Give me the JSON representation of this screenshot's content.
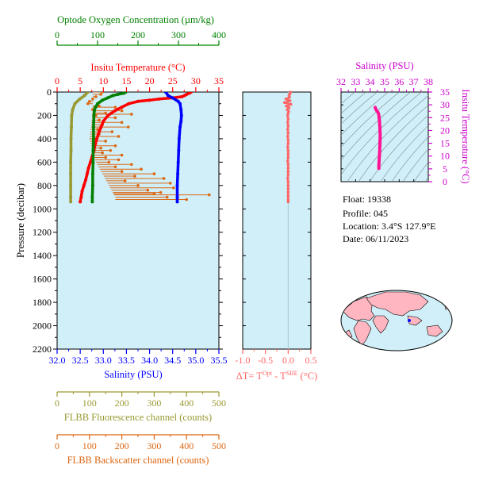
{
  "colors": {
    "oxygen": "#008000",
    "temperature": "#ff0000",
    "salinity": "#0000ff",
    "fluorescence": "#999933",
    "backscatter": "#dd6611",
    "delta_t": "#ff6666",
    "ts_axes": "#cc00cc",
    "ts_profile": "#ff1493",
    "panel_bg": "#d0eff8",
    "land": "#ffb6c1",
    "text": "#000000"
  },
  "info": {
    "float": "Float:  19338",
    "profile": "Profile:  045",
    "location": "Location:  3.4°S  127.9°E",
    "date": "Date:  06/11/2023"
  },
  "chart_data": [
    {
      "type": "line",
      "name": "profile-panel",
      "ylabel": "Pressure (decibar)",
      "ylim": [
        2200,
        0
      ],
      "yticks": [
        0,
        200,
        400,
        600,
        800,
        1000,
        1200,
        1400,
        1600,
        1800,
        2000,
        2200
      ],
      "axes": {
        "oxygen": {
          "label": "Optode Oxygen Concentration (µm/kg)",
          "range": [
            0,
            400
          ],
          "ticks": [
            0,
            100,
            200,
            300,
            400
          ]
        },
        "temperature": {
          "label": "Insitu Temperature (°C)",
          "range": [
            0,
            35
          ],
          "ticks": [
            0,
            5,
            10,
            15,
            20,
            25,
            30,
            35
          ]
        },
        "salinity": {
          "label": "Salinity (PSU)",
          "range": [
            32.0,
            35.5
          ],
          "ticks": [
            "32.0",
            "32.5",
            "33.0",
            "33.5",
            "34.0",
            "34.5",
            "35.0",
            "35.5"
          ]
        },
        "fluorescence": {
          "label": "FLBB Fluorescence channel (counts)",
          "range": [
            0,
            500
          ],
          "ticks": [
            0,
            100,
            200,
            300,
            400,
            500
          ]
        },
        "backscatter": {
          "label": "FLBB Backscatter channel (counts)",
          "range": [
            0,
            500
          ],
          "ticks": [
            0,
            100,
            200,
            300,
            400,
            500
          ]
        }
      },
      "series": [
        {
          "name": "temperature",
          "axis": "temperature",
          "points": [
            [
              29,
              0
            ],
            [
              28.6,
              10
            ],
            [
              28,
              20
            ],
            [
              27.6,
              30
            ],
            [
              27,
              40
            ],
            [
              25,
              50
            ],
            [
              22,
              60
            ],
            [
              20,
              70
            ],
            [
              17.5,
              80
            ],
            [
              15.5,
              100
            ],
            [
              14,
              130
            ],
            [
              12.5,
              160
            ],
            [
              11,
              200
            ],
            [
              10,
              250
            ],
            [
              9.5,
              300
            ],
            [
              9,
              350
            ],
            [
              8.6,
              400
            ],
            [
              8.2,
              450
            ],
            [
              8,
              500
            ],
            [
              7.6,
              550
            ],
            [
              7.2,
              600
            ],
            [
              6.8,
              650
            ],
            [
              6.5,
              700
            ],
            [
              6.2,
              750
            ],
            [
              5.8,
              800
            ],
            [
              5.4,
              850
            ],
            [
              5.2,
              900
            ],
            [
              5,
              940
            ]
          ]
        },
        {
          "name": "salinity",
          "axis": "salinity",
          "points": [
            [
              34.35,
              0
            ],
            [
              34.4,
              30
            ],
            [
              34.5,
              50
            ],
            [
              34.62,
              80
            ],
            [
              34.66,
              100
            ],
            [
              34.68,
              150
            ],
            [
              34.69,
              200
            ],
            [
              34.68,
              250
            ],
            [
              34.66,
              300
            ],
            [
              34.64,
              400
            ],
            [
              34.63,
              500
            ],
            [
              34.62,
              600
            ],
            [
              34.61,
              700
            ],
            [
              34.6,
              800
            ],
            [
              34.6,
              900
            ],
            [
              34.6,
              940
            ]
          ]
        },
        {
          "name": "oxygen",
          "axis": "oxygen",
          "points": [
            [
              170,
              0
            ],
            [
              165,
              10
            ],
            [
              150,
              20
            ],
            [
              138,
              30
            ],
            [
              125,
              50
            ],
            [
              112,
              70
            ],
            [
              100,
              100
            ],
            [
              95,
              130
            ],
            [
              92,
              160
            ],
            [
              91,
              200
            ],
            [
              90,
              300
            ],
            [
              90,
              400
            ],
            [
              89,
              500
            ],
            [
              89,
              600
            ],
            [
              88,
              700
            ],
            [
              88,
              800
            ],
            [
              87,
              900
            ],
            [
              87,
              940
            ]
          ]
        },
        {
          "name": "fluorescence",
          "axis": "fluorescence",
          "points": [
            [
              95,
              0
            ],
            [
              85,
              30
            ],
            [
              70,
              60
            ],
            [
              55,
              100
            ],
            [
              48,
              150
            ],
            [
              45,
              200
            ],
            [
              44,
              300
            ],
            [
              43,
              400
            ],
            [
              43,
              500
            ],
            [
              42,
              600
            ],
            [
              42,
              700
            ],
            [
              42,
              800
            ],
            [
              42,
              900
            ],
            [
              42,
              940
            ]
          ]
        }
      ],
      "backscatter_points": [
        [
          140,
          0
        ],
        [
          135,
          20
        ],
        [
          120,
          40
        ],
        [
          110,
          60
        ],
        [
          100,
          80
        ],
        [
          95,
          100
        ],
        [
          130,
          120
        ],
        [
          180,
          130
        ],
        [
          110,
          150
        ],
        [
          200,
          160
        ],
        [
          150,
          180
        ],
        [
          230,
          190
        ],
        [
          120,
          200
        ],
        [
          180,
          220
        ],
        [
          130,
          240
        ],
        [
          200,
          260
        ],
        [
          140,
          280
        ],
        [
          220,
          300
        ],
        [
          125,
          320
        ],
        [
          170,
          340
        ],
        [
          130,
          360
        ],
        [
          190,
          380
        ],
        [
          115,
          400
        ],
        [
          150,
          420
        ],
        [
          120,
          440
        ],
        [
          180,
          460
        ],
        [
          135,
          480
        ],
        [
          165,
          500
        ],
        [
          140,
          520
        ],
        [
          200,
          540
        ],
        [
          150,
          560
        ],
        [
          190,
          580
        ],
        [
          160,
          600
        ],
        [
          230,
          620
        ],
        [
          180,
          640
        ],
        [
          260,
          660
        ],
        [
          200,
          680
        ],
        [
          300,
          700
        ],
        [
          240,
          720
        ],
        [
          330,
          740
        ],
        [
          210,
          760
        ],
        [
          350,
          780
        ],
        [
          250,
          800
        ],
        [
          360,
          820
        ],
        [
          280,
          840
        ],
        [
          320,
          860
        ],
        [
          300,
          870
        ],
        [
          470,
          880
        ],
        [
          340,
          900
        ],
        [
          400,
          920
        ]
      ],
      "backscatter_baseline": [
        [
          110,
          140
        ],
        [
          105,
          300
        ],
        [
          100,
          400
        ],
        [
          110,
          500
        ],
        [
          120,
          600
        ],
        [
          140,
          700
        ],
        [
          160,
          800
        ],
        [
          180,
          900
        ]
      ]
    },
    {
      "type": "scatter",
      "name": "delta-t-panel",
      "xlabel": "ΔT= T(Opt) - T(SBE) (°C)",
      "xlabel_parts": [
        "ΔT= T",
        "Opt",
        " - T",
        "SBE",
        " (°C)"
      ],
      "xlim": [
        -1.0,
        0.5
      ],
      "xticks": [
        "-1.0",
        "-0.5",
        "0.0",
        "0.5"
      ],
      "ylim": [
        2200,
        0
      ],
      "points": [
        [
          0.05,
          0
        ],
        [
          0.04,
          15
        ],
        [
          0.02,
          30
        ],
        [
          0.03,
          45
        ],
        [
          -0.05,
          60
        ],
        [
          0.04,
          75
        ],
        [
          -0.08,
          90
        ],
        [
          0.06,
          105
        ],
        [
          -0.04,
          120
        ],
        [
          0.02,
          135
        ],
        [
          -0.02,
          150
        ],
        [
          0.01,
          165
        ],
        [
          0.0,
          180
        ],
        [
          -0.01,
          200
        ],
        [
          0.0,
          230
        ],
        [
          -0.01,
          260
        ],
        [
          0.0,
          290
        ],
        [
          -0.01,
          320
        ],
        [
          0.0,
          350
        ],
        [
          -0.01,
          380
        ],
        [
          0.0,
          410
        ],
        [
          0.0,
          440
        ],
        [
          -0.01,
          470
        ],
        [
          0.0,
          500
        ],
        [
          0.0,
          530
        ],
        [
          0.0,
          560
        ],
        [
          -0.01,
          590
        ],
        [
          0.0,
          620
        ],
        [
          0.0,
          650
        ],
        [
          0.0,
          680
        ],
        [
          0.0,
          710
        ],
        [
          -0.01,
          740
        ],
        [
          0.0,
          770
        ],
        [
          0.0,
          800
        ],
        [
          0.0,
          830
        ],
        [
          0.0,
          860
        ],
        [
          0.0,
          890
        ],
        [
          0.0,
          920
        ],
        [
          0.0,
          940
        ]
      ]
    },
    {
      "type": "scatter",
      "name": "ts-diagram",
      "xlabel": "Salinity (PSU)",
      "ylabel": "Insitu Temperature (°C)",
      "xlim": [
        32,
        38
      ],
      "xticks": [
        32,
        33,
        34,
        35,
        36,
        37,
        38
      ],
      "ylim": [
        0,
        35
      ],
      "yticks": [
        0,
        5,
        10,
        15,
        20,
        25,
        30,
        35
      ],
      "points": [
        [
          34.35,
          29
        ],
        [
          34.38,
          28.5
        ],
        [
          34.42,
          28
        ],
        [
          34.48,
          27.5
        ],
        [
          34.55,
          27
        ],
        [
          34.6,
          26
        ],
        [
          34.62,
          25
        ],
        [
          34.64,
          24
        ],
        [
          34.65,
          23
        ],
        [
          34.66,
          22
        ],
        [
          34.67,
          21
        ],
        [
          34.68,
          20
        ],
        [
          34.69,
          19
        ],
        [
          34.69,
          18
        ],
        [
          34.69,
          17
        ],
        [
          34.68,
          16
        ],
        [
          34.68,
          15
        ],
        [
          34.67,
          14
        ],
        [
          34.66,
          13
        ],
        [
          34.66,
          12
        ],
        [
          34.65,
          11
        ],
        [
          34.64,
          10
        ],
        [
          34.63,
          9
        ],
        [
          34.62,
          8
        ],
        [
          34.61,
          7
        ],
        [
          34.6,
          6
        ],
        [
          34.6,
          5.2
        ]
      ]
    }
  ]
}
